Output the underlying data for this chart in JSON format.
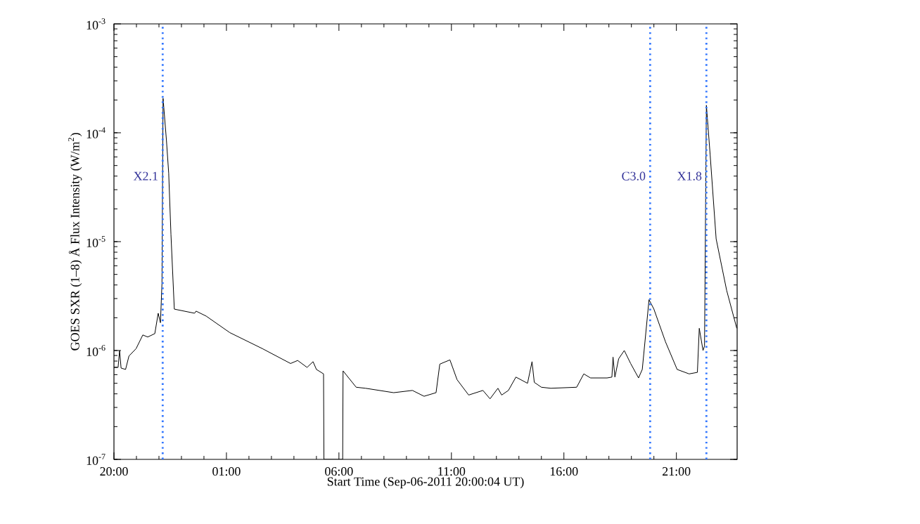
{
  "chart_data": {
    "type": "line",
    "xlabel": "Start Time (Sep-06-2011 20:00:04 UT)",
    "ylabel": "GOES SXR (1–8) Å Flux Intensity (W/m$^{2}$)",
    "x": [
      "2011-09-06T20:00",
      "2011-09-06T20:11",
      "2011-09-06T20:15",
      "2011-09-06T20:19",
      "2011-09-06T20:31",
      "2011-09-06T20:40",
      "2011-09-06T20:59",
      "2011-09-06T21:17",
      "2011-09-06T21:30",
      "2011-09-06T21:49",
      "2011-09-06T21:58",
      "2011-09-06T22:04",
      "2011-09-06T22:08",
      "2011-09-06T22:11",
      "2011-09-06T22:20",
      "2011-09-06T22:26",
      "2011-09-06T22:32",
      "2011-09-06T22:41",
      "2011-09-06T23:35",
      "2011-09-06T23:39",
      "2011-09-07T00:06",
      "2011-09-07T01:09",
      "2011-09-07T02:36",
      "2011-09-07T03:51",
      "2011-09-07T04:10",
      "2011-09-07T04:35",
      "2011-09-07T04:51",
      "2011-09-07T05:00",
      "2011-09-07T05:19",
      "2011-09-07T05:20",
      "2011-09-07T06:10",
      "2011-09-07T06:11",
      "2011-09-07T06:46",
      "2011-09-07T07:11",
      "2011-09-07T08:26",
      "2011-09-07T09:16",
      "2011-09-07T09:47",
      "2011-09-07T10:19",
      "2011-09-07T10:29",
      "2011-09-07T10:56",
      "2011-09-07T11:15",
      "2011-09-07T11:46",
      "2011-09-07T12:24",
      "2011-09-07T12:43",
      "2011-09-07T13:04",
      "2011-09-07T13:14",
      "2011-09-07T13:32",
      "2011-09-07T13:52",
      "2011-09-07T14:23",
      "2011-09-07T14:35",
      "2011-09-07T14:41",
      "2011-09-07T15:00",
      "2011-09-07T15:25",
      "2011-09-07T16:34",
      "2011-09-07T16:53",
      "2011-09-07T17:11",
      "2011-09-07T17:55",
      "2011-09-07T18:08",
      "2011-09-07T18:11",
      "2011-09-07T18:16",
      "2011-09-07T18:26",
      "2011-09-07T18:41",
      "2011-09-07T18:58",
      "2011-09-07T19:19",
      "2011-09-07T19:29",
      "2011-09-07T19:47",
      "2011-09-07T20:00",
      "2011-09-07T20:31",
      "2011-09-07T21:02",
      "2011-09-07T21:34",
      "2011-09-07T21:56",
      "2011-09-07T22:01",
      "2011-09-07T22:11",
      "2011-09-07T22:15",
      "2011-09-07T22:20",
      "2011-09-07T22:30",
      "2011-09-07T22:46",
      "2011-09-07T23:14",
      "2011-09-07T23:41"
    ],
    "series": [
      {
        "color": "#000000",
        "values": [
          7e-07,
          7e-07,
          1e-06,
          6.9e-07,
          6.7e-07,
          8.9e-07,
          1.04e-06,
          1.39e-06,
          1.33e-06,
          1.43e-06,
          2.2e-06,
          1.8e-06,
          4.1e-06,
          0.000207,
          8.5e-05,
          4.25e-05,
          1.17e-05,
          2.4e-06,
          2.2e-06,
          2.3e-06,
          2.07e-06,
          1.46e-06,
          1.04e-06,
          7.6e-07,
          8.1e-07,
          7e-07,
          7.9e-07,
          6.7e-07,
          6.1e-07,
          1e-07,
          1e-07,
          6.5e-07,
          4.6e-07,
          4.5e-07,
          4.1e-07,
          4.3e-07,
          3.8e-07,
          4.1e-07,
          7.5e-07,
          8.2e-07,
          5.4e-07,
          3.9e-07,
          4.3e-07,
          3.6e-07,
          4.5e-07,
          3.9e-07,
          4.3e-07,
          5.7e-07,
          5e-07,
          7.9e-07,
          5.1e-07,
          4.6e-07,
          4.5e-07,
          4.6e-07,
          6.1e-07,
          5.6e-07,
          5.6e-07,
          5.7e-07,
          8.7e-07,
          5.7e-07,
          8.4e-07,
          1e-06,
          7.6e-07,
          5.6e-07,
          6.7e-07,
          2.93e-06,
          2.4e-06,
          1.2e-06,
          6.7e-07,
          6.1e-07,
          6.3e-07,
          1.6e-06,
          1e-06,
          1.1e-06,
          0.000179,
          6.3e-05,
          1.06e-05,
          3.57e-06,
          1.6e-06
        ]
      }
    ],
    "xlim": [
      "2011-09-06T20:00",
      "2011-09-07T23:42"
    ],
    "xticks": [
      {
        "value": "2011-09-06T20:00",
        "label": "20:00"
      },
      {
        "value": "2011-09-07T01:00",
        "label": "01:00"
      },
      {
        "value": "2011-09-07T06:00",
        "label": "06:00"
      },
      {
        "value": "2011-09-07T11:00",
        "label": "11:00"
      },
      {
        "value": "2011-09-07T16:00",
        "label": "16:00"
      },
      {
        "value": "2011-09-07T21:00",
        "label": "21:00"
      }
    ],
    "ylim": [
      1e-07,
      0.001
    ],
    "yticks": [
      {
        "value": 1e-07,
        "label": "10$^{-7}$"
      },
      {
        "value": 1e-06,
        "label": "10$^{-6}$"
      },
      {
        "value": 1e-05,
        "label": "10$^{-5}$"
      },
      {
        "value": 0.0001,
        "label": "10$^{-4}$"
      },
      {
        "value": 0.001,
        "label": "10$^{-3}$"
      }
    ],
    "log": "y",
    "marker": "none",
    "line_style": "solid",
    "ref_lines": [
      {
        "axis": "x",
        "value": "2011-09-06T22:10",
        "label": "X2.1",
        "color": "#3377ff",
        "line_style": "dotted"
      },
      {
        "axis": "x",
        "value": "2011-09-07T19:50",
        "label": "C3.0",
        "color": "#3377ff",
        "line_style": "dotted"
      },
      {
        "axis": "x",
        "value": "2011-09-07T22:20",
        "label": "X1.8",
        "color": "#3377ff",
        "line_style": "dotted"
      }
    ]
  }
}
